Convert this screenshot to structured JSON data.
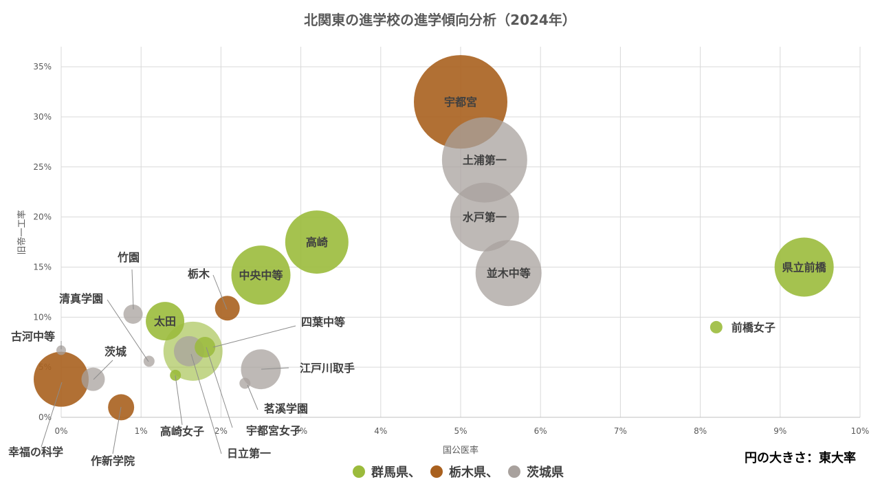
{
  "colors": {
    "gunma": "#9bbb3c",
    "tochigi": "#a9601e",
    "ibaraki": "#a8a19d",
    "grid": "#d9d9d9",
    "text": "#595959"
  },
  "chart_data": {
    "type": "bubble",
    "title": "北関東の進学校の進学傾向分析（2024年）",
    "xlabel": "国公医率",
    "ylabel": "旧帝一工率",
    "xlim": [
      0,
      10
    ],
    "ylim": [
      0,
      37
    ],
    "xticks": [
      0,
      1,
      2,
      3,
      4,
      5,
      6,
      7,
      8,
      9,
      10
    ],
    "yticks": [
      0,
      5,
      10,
      15,
      20,
      25,
      30,
      35
    ],
    "xtick_labels": [
      "0%",
      "1%",
      "2%",
      "3%",
      "4%",
      "5%",
      "6%",
      "7%",
      "8%",
      "9%",
      "10%"
    ],
    "ytick_labels": [
      "0%",
      "5%",
      "10%",
      "15%",
      "20%",
      "25%",
      "30%",
      "35%"
    ],
    "grid": true,
    "size_note": "円の大きさ：東大率",
    "legend_position": "bottom",
    "legend": [
      {
        "name": "群馬県、",
        "color": "#9bbb3c"
      },
      {
        "name": "栃木県、",
        "color": "#a9601e"
      },
      {
        "name": "茨城県",
        "color": "#a8a19d"
      }
    ],
    "series": [
      {
        "name": "群馬県",
        "color": "#9bbb3c",
        "points": [
          {
            "label": "高崎",
            "x": 3.2,
            "y": 17.5,
            "size": 46
          },
          {
            "label": "中央中等",
            "x": 2.5,
            "y": 14.2,
            "size": 43
          },
          {
            "label": "太田",
            "x": 1.3,
            "y": 9.6,
            "size": 28
          },
          {
            "label": "前橋女子",
            "x": 8.2,
            "y": 9.0,
            "size": 9
          },
          {
            "label": "県立前橋",
            "x": 9.3,
            "y": 15.0,
            "size": 43
          },
          {
            "label": "高崎女子",
            "x": 1.43,
            "y": 4.2,
            "size": 8
          },
          {
            "label": "四葉中等",
            "x": 1.8,
            "y": 7.0,
            "size": 15
          },
          {
            "label": "日立第一",
            "x": 1.65,
            "y": 6.6,
            "size": 43
          }
        ]
      },
      {
        "name": "栃木県",
        "color": "#a9601e",
        "points": [
          {
            "label": "宇都宮",
            "x": 5.0,
            "y": 31.5,
            "size": 68
          },
          {
            "label": "栃木",
            "x": 2.08,
            "y": 10.9,
            "size": 18
          },
          {
            "label": "宇都宮女子",
            "x": 0.0,
            "y": 3.8,
            "size": 40
          },
          {
            "label": "作新学院",
            "x": 0.75,
            "y": 1.0,
            "size": 19
          }
        ]
      },
      {
        "name": "茨城県",
        "color": "#a8a19d",
        "points": [
          {
            "label": "土浦第一",
            "x": 5.3,
            "y": 25.7,
            "size": 62
          },
          {
            "label": "水戸第一",
            "x": 5.3,
            "y": 20.0,
            "size": 50
          },
          {
            "label": "並木中等",
            "x": 5.6,
            "y": 14.4,
            "size": 48
          },
          {
            "label": "竹園",
            "x": 0.9,
            "y": 10.3,
            "size": 14
          },
          {
            "label": "清真学園",
            "x": 1.1,
            "y": 5.6,
            "size": 8
          },
          {
            "label": "茨城",
            "x": 0.4,
            "y": 3.8,
            "size": 17
          },
          {
            "label": "古河中等",
            "x": 0.0,
            "y": 6.7,
            "size": 7
          },
          {
            "label": "幸福の科学",
            "x": 1.6,
            "y": 6.6,
            "size": 22
          },
          {
            "label": "江戸川取手",
            "x": 2.5,
            "y": 4.8,
            "size": 29
          },
          {
            "label": "茗溪学園",
            "x": 2.3,
            "y": 3.4,
            "size": 8
          }
        ]
      }
    ]
  }
}
